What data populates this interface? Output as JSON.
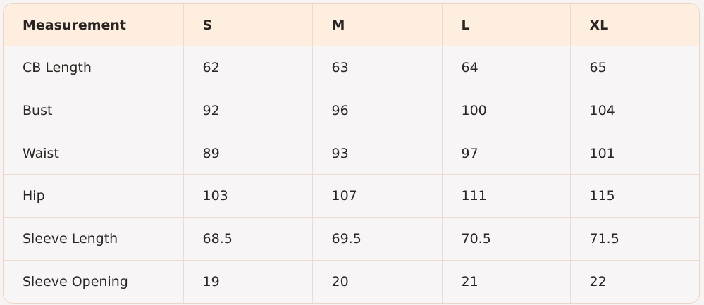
{
  "table": {
    "headers": [
      "Measurement",
      "S",
      "M",
      "L",
      "XL"
    ],
    "rows": [
      [
        "CB Length",
        "62",
        "63",
        "64",
        "65"
      ],
      [
        "Bust",
        "92",
        "96",
        "100",
        "104"
      ],
      [
        "Waist",
        "89",
        "93",
        "97",
        "101"
      ],
      [
        "Hip",
        "103",
        "107",
        "111",
        "115"
      ],
      [
        "Sleeve Length",
        "68.5",
        "69.5",
        "70.5",
        "71.5"
      ],
      [
        "Sleeve Opening",
        "19",
        "20",
        "21",
        "22"
      ]
    ]
  },
  "colors": {
    "header_bg": "#fdeedf",
    "body_bg": "#f7f5f5",
    "border": "#ecdcd0"
  }
}
